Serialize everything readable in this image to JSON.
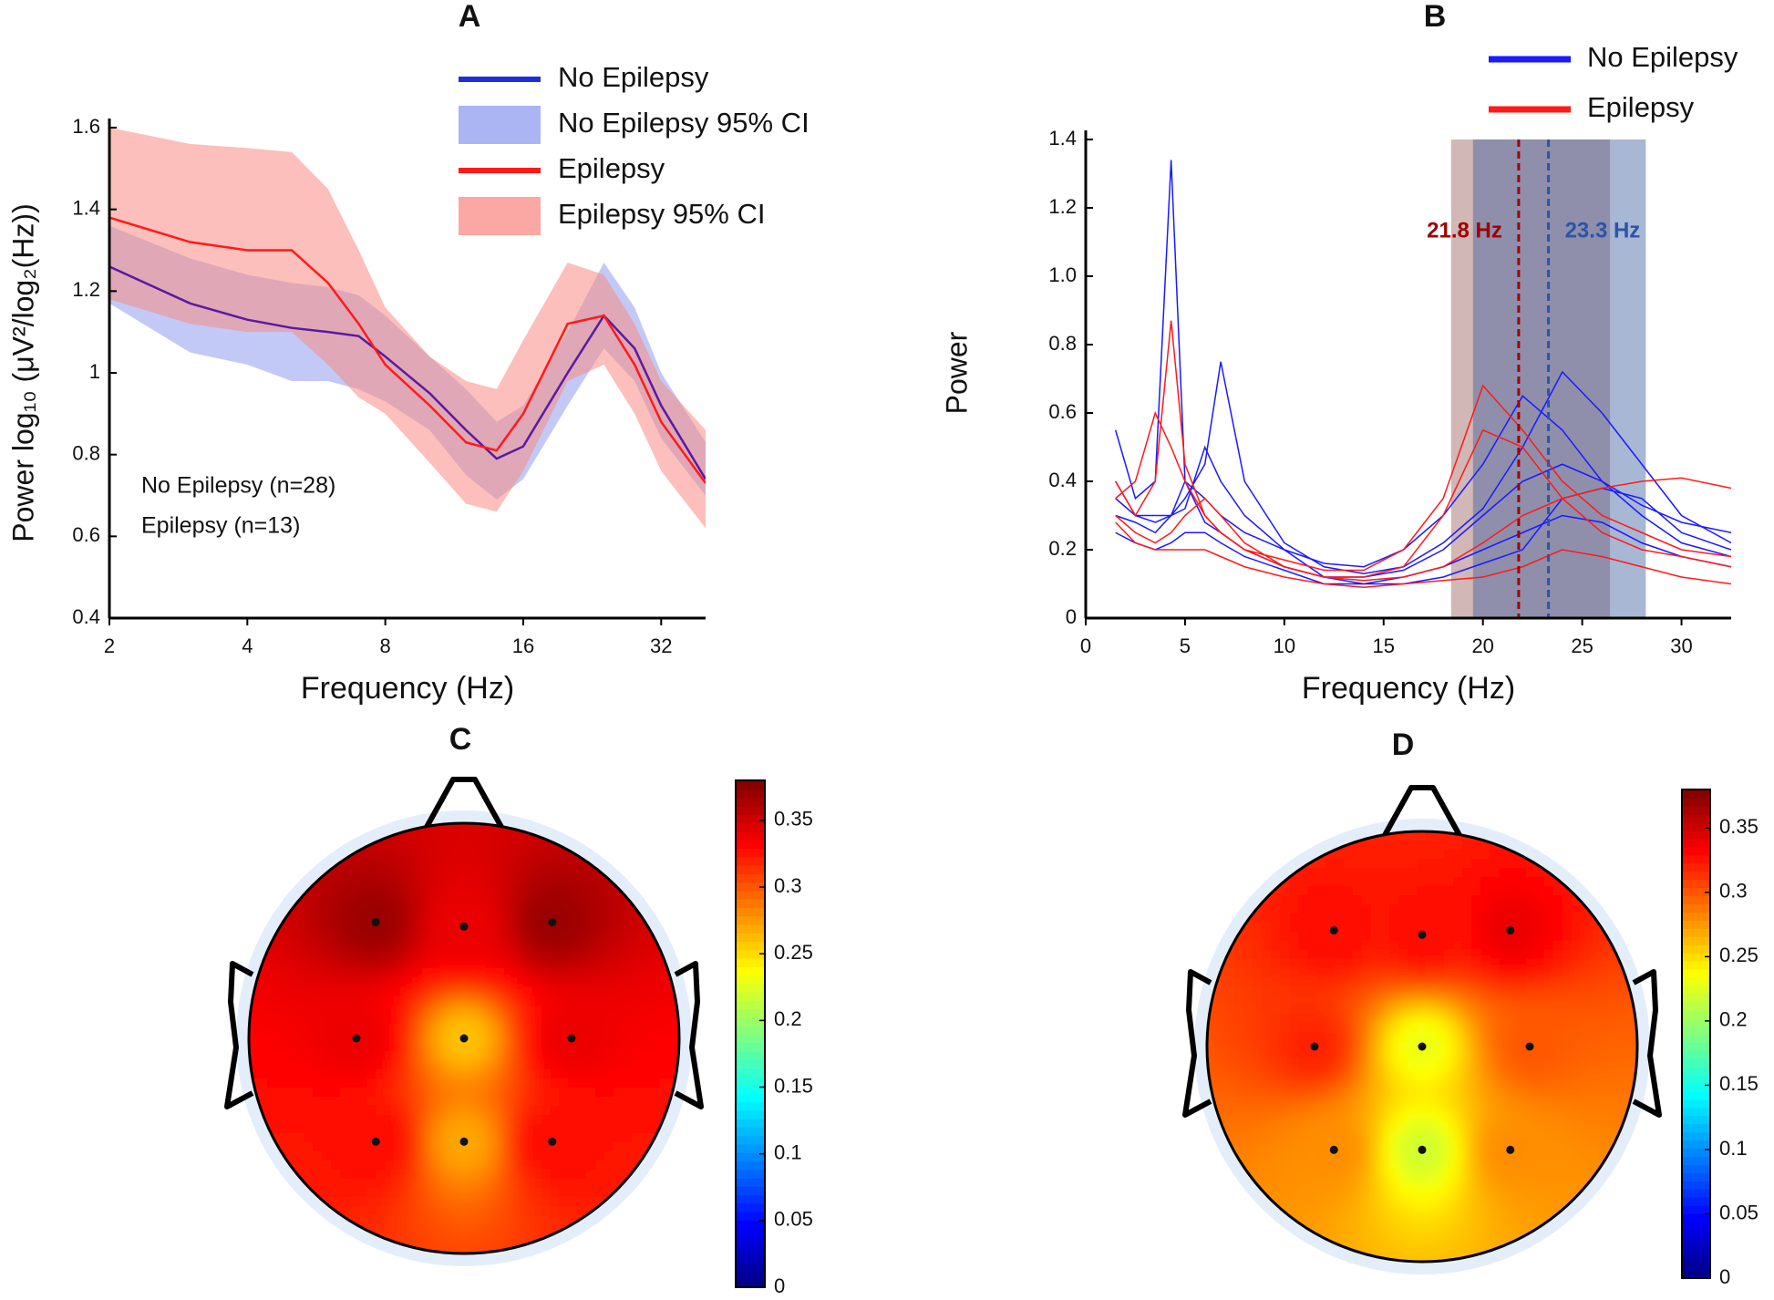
{
  "chart_data": [
    {
      "type": "line",
      "title": "A",
      "xlabel": "Frequency (Hz)",
      "ylabel": "Power log₁₀ (μV²/log₂(Hz))",
      "log_x": true,
      "xlim": [
        2,
        40
      ],
      "xticks": [
        2,
        4,
        8,
        16,
        32
      ],
      "ylim": [
        0.4,
        1.6
      ],
      "yticks": [
        0.4,
        0.6,
        0.8,
        1,
        1.2,
        1.4,
        1.6
      ],
      "x": [
        2,
        3,
        4,
        5,
        6,
        7,
        8,
        10,
        12,
        14,
        16,
        20,
        24,
        28,
        32,
        40
      ],
      "series": [
        {
          "name": "No Epilepsy",
          "color": "#1f2fd8",
          "line_color": "#5a1aa0",
          "values": [
            1.26,
            1.17,
            1.13,
            1.11,
            1.1,
            1.09,
            1.04,
            0.95,
            0.86,
            0.79,
            0.82,
            1.0,
            1.14,
            1.06,
            0.92,
            0.74
          ]
        },
        {
          "name": "No Epilepsy 95% CI",
          "color": "#8f9cf0",
          "lower": [
            1.17,
            1.05,
            1.02,
            0.98,
            0.98,
            0.96,
            0.93,
            0.86,
            0.75,
            0.69,
            0.74,
            0.92,
            1.06,
            0.98,
            0.84,
            0.7
          ],
          "upper": [
            1.36,
            1.28,
            1.24,
            1.22,
            1.21,
            1.19,
            1.14,
            1.04,
            0.96,
            0.88,
            0.92,
            1.1,
            1.27,
            1.16,
            1.0,
            0.83
          ]
        },
        {
          "name": "Epilepsy",
          "color": "#ff1a1a",
          "values": [
            1.38,
            1.32,
            1.3,
            1.3,
            1.22,
            1.12,
            1.02,
            0.92,
            0.83,
            0.81,
            0.9,
            1.12,
            1.14,
            1.02,
            0.88,
            0.73
          ]
        },
        {
          "name": "Epilepsy 95% CI",
          "color": "#f98a84",
          "lower": [
            1.18,
            1.12,
            1.1,
            1.1,
            1.02,
            0.94,
            0.9,
            0.78,
            0.68,
            0.66,
            0.76,
            0.98,
            1.02,
            0.9,
            0.76,
            0.62
          ],
          "upper": [
            1.6,
            1.56,
            1.55,
            1.54,
            1.45,
            1.3,
            1.16,
            1.04,
            0.98,
            0.96,
            1.08,
            1.27,
            1.24,
            1.12,
            0.98,
            0.86
          ]
        }
      ],
      "annotations": [
        "No Epilepsy (n=28)",
        "Epilepsy (n=13)"
      ]
    },
    {
      "type": "multiline",
      "title": "B",
      "xlabel": "Frequency (Hz)",
      "ylabel": "Power",
      "xlim": [
        0,
        32.5
      ],
      "xticks": [
        0,
        5,
        10,
        15,
        20,
        25,
        30
      ],
      "ylim": [
        0,
        1.4
      ],
      "yticks": [
        0,
        0.2,
        0.4,
        0.6,
        0.8,
        {
          "value": 1,
          "label": "1.0"
        },
        1.2,
        1.4
      ],
      "x": [
        1.5,
        2.5,
        3.5,
        4.3,
        5,
        6,
        6.8,
        8,
        10,
        12,
        14,
        16,
        18,
        20,
        22,
        24,
        26,
        28,
        30,
        32.5
      ],
      "spans": [
        {
          "range": [
            18.4,
            26.4
          ],
          "color": "#9a5f5a"
        },
        {
          "range": [
            19.5,
            28.2
          ],
          "color": "#3f5f9f"
        }
      ],
      "vlines": [
        {
          "x": 21.8,
          "label": "21.8 Hz",
          "color": "#a00000"
        },
        {
          "x": 23.3,
          "label": "23.3 Hz",
          "color": "#2a55a8"
        }
      ],
      "series": [
        {
          "name": "No Epilepsy",
          "color": "#1a1aff",
          "lines": [
            [
              0.55,
              0.35,
              0.4,
              1.34,
              0.4,
              0.28,
              0.25,
              0.2,
              0.15,
              0.12,
              0.12,
              0.14,
              0.2,
              0.3,
              0.4,
              0.45,
              0.4,
              0.3,
              0.22,
              0.18
            ],
            [
              0.4,
              0.3,
              0.3,
              0.3,
              0.35,
              0.45,
              0.75,
              0.4,
              0.22,
              0.15,
              0.13,
              0.15,
              0.22,
              0.32,
              0.5,
              0.72,
              0.6,
              0.45,
              0.3,
              0.22
            ],
            [
              0.3,
              0.28,
              0.25,
              0.3,
              0.4,
              0.35,
              0.3,
              0.25,
              0.2,
              0.16,
              0.15,
              0.2,
              0.3,
              0.45,
              0.65,
              0.55,
              0.4,
              0.33,
              0.28,
              0.25
            ],
            [
              0.25,
              0.22,
              0.2,
              0.22,
              0.25,
              0.25,
              0.22,
              0.18,
              0.14,
              0.1,
              0.1,
              0.12,
              0.15,
              0.2,
              0.25,
              0.3,
              0.28,
              0.22,
              0.18,
              0.15
            ],
            [
              0.35,
              0.3,
              0.28,
              0.3,
              0.32,
              0.5,
              0.4,
              0.3,
              0.2,
              0.12,
              0.1,
              0.1,
              0.12,
              0.16,
              0.2,
              0.35,
              0.38,
              0.35,
              0.25,
              0.2
            ]
          ]
        },
        {
          "name": "Epilepsy",
          "color": "#ff1a1a",
          "lines": [
            [
              0.4,
              0.3,
              0.4,
              0.87,
              0.45,
              0.3,
              0.25,
              0.2,
              0.15,
              0.12,
              0.12,
              0.15,
              0.3,
              0.55,
              0.5,
              0.35,
              0.25,
              0.2,
              0.18,
              0.15
            ],
            [
              0.35,
              0.4,
              0.6,
              0.5,
              0.4,
              0.3,
              0.25,
              0.2,
              0.17,
              0.14,
              0.14,
              0.2,
              0.35,
              0.68,
              0.55,
              0.4,
              0.3,
              0.25,
              0.2,
              0.18
            ],
            [
              0.3,
              0.25,
              0.22,
              0.25,
              0.3,
              0.35,
              0.3,
              0.22,
              0.15,
              0.12,
              0.11,
              0.12,
              0.15,
              0.22,
              0.3,
              0.35,
              0.38,
              0.4,
              0.41,
              0.38
            ],
            [
              0.28,
              0.22,
              0.2,
              0.2,
              0.2,
              0.2,
              0.18,
              0.15,
              0.12,
              0.1,
              0.09,
              0.1,
              0.11,
              0.12,
              0.15,
              0.2,
              0.18,
              0.15,
              0.12,
              0.1
            ]
          ]
        }
      ]
    },
    {
      "type": "topomap",
      "title": "C",
      "colormap": "jet",
      "clim": [
        0,
        0.38
      ],
      "cticks": [
        0,
        0.05,
        0.1,
        0.15,
        0.2,
        0.25,
        0.3,
        0.35
      ],
      "values": [
        0.37,
        0.34,
        0.37,
        0.34,
        0.26,
        0.34,
        0.33,
        0.27,
        0.33
      ]
    },
    {
      "type": "topomap",
      "title": "D",
      "colormap": "jet",
      "clim": [
        0,
        0.38
      ],
      "cticks": [
        0,
        0.05,
        0.1,
        0.15,
        0.2,
        0.25,
        0.3,
        0.35
      ],
      "values": [
        0.33,
        0.33,
        0.34,
        0.32,
        0.23,
        0.3,
        0.28,
        0.22,
        0.28
      ]
    }
  ]
}
